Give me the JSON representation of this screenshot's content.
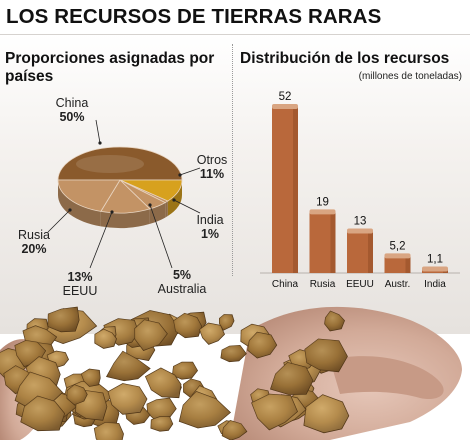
{
  "title": "LOS RECURSOS DE TIERRAS RARAS",
  "left_panel": {
    "heading": "Proporciones asignadas por países"
  },
  "right_panel": {
    "heading": "Distribución de los recursos",
    "unit": "(millones de toneladas)"
  },
  "colors": {
    "bar": "#b9683b",
    "bar_top": "#d9a582",
    "china_slice": "#8a5a2c",
    "otros_slice": "#d7a11e",
    "other_slices": "#c39365",
    "rock": "#a9803e"
  },
  "chart_data": [
    {
      "type": "pie",
      "title": "Proporciones asignadas por países",
      "slices": [
        {
          "label": "China",
          "value": 50,
          "value_label": "50%"
        },
        {
          "label": "Otros",
          "value": 11,
          "value_label": "11%"
        },
        {
          "label": "India",
          "value": 1,
          "value_label": "1%"
        },
        {
          "label": "Australia",
          "value": 5,
          "value_label": "5%"
        },
        {
          "label": "EEUU",
          "value": 13,
          "value_label": "13%"
        },
        {
          "label": "Rusia",
          "value": 20,
          "value_label": "20%"
        }
      ]
    },
    {
      "type": "bar",
      "title": "Distribución de los recursos",
      "ylabel": "(millones de toneladas)",
      "categories": [
        "China",
        "Rusia",
        "EEUU",
        "Austr.",
        "India"
      ],
      "values": [
        52,
        19,
        13,
        5.2,
        1.1
      ],
      "value_labels": [
        "52",
        "19",
        "13",
        "5,2",
        "1,1"
      ],
      "ylim": [
        0,
        52
      ]
    }
  ]
}
